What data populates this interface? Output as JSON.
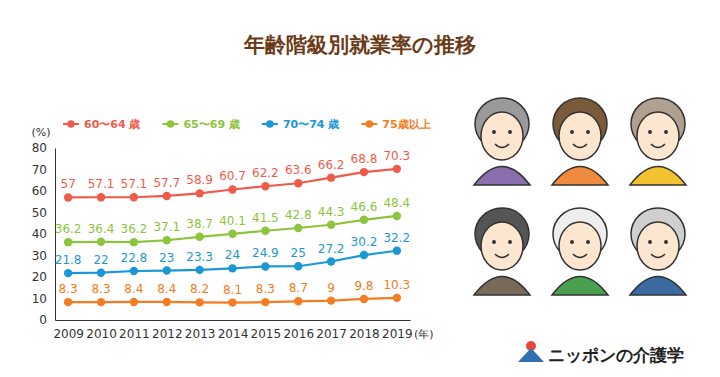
{
  "chart_data": {
    "type": "line",
    "title": "年齢階級別就業率の推移",
    "x_label": "(年)",
    "y_label": "(%)",
    "categories": [
      "2009",
      "2010",
      "2011",
      "2012",
      "2013",
      "2014",
      "2015",
      "2016",
      "2017",
      "2018",
      "2019"
    ],
    "series": [
      {
        "name": "60〜64 歳",
        "color": "#ef5b4b",
        "values": [
          57,
          57.1,
          57.1,
          57.7,
          58.9,
          60.7,
          62.2,
          63.6,
          66.2,
          68.8,
          70.3
        ]
      },
      {
        "name": "65〜69 歳",
        "color": "#8cc43c",
        "values": [
          36.2,
          36.4,
          36.2,
          37.1,
          38.7,
          40.1,
          41.5,
          42.8,
          44.3,
          46.6,
          48.4
        ]
      },
      {
        "name": "70〜74 歳",
        "color": "#1a98d5",
        "values": [
          21.8,
          22,
          22.8,
          23,
          23.3,
          24,
          24.9,
          25,
          27.2,
          30.2,
          32.2
        ]
      },
      {
        "name": "75歳以上",
        "color": "#f57c22",
        "values": [
          8.3,
          8.3,
          8.4,
          8.4,
          8.2,
          8.1,
          8.3,
          8.7,
          9,
          9.8,
          10.3
        ]
      }
    ],
    "ylim": [
      0,
      80
    ],
    "yticks": [
      0,
      10,
      20,
      30,
      40,
      50,
      60,
      70,
      80
    ],
    "grid": false,
    "legend": "top",
    "marker": "circle",
    "data_labels": true,
    "annotations": [
      "ニッポンの介護学"
    ]
  }
}
